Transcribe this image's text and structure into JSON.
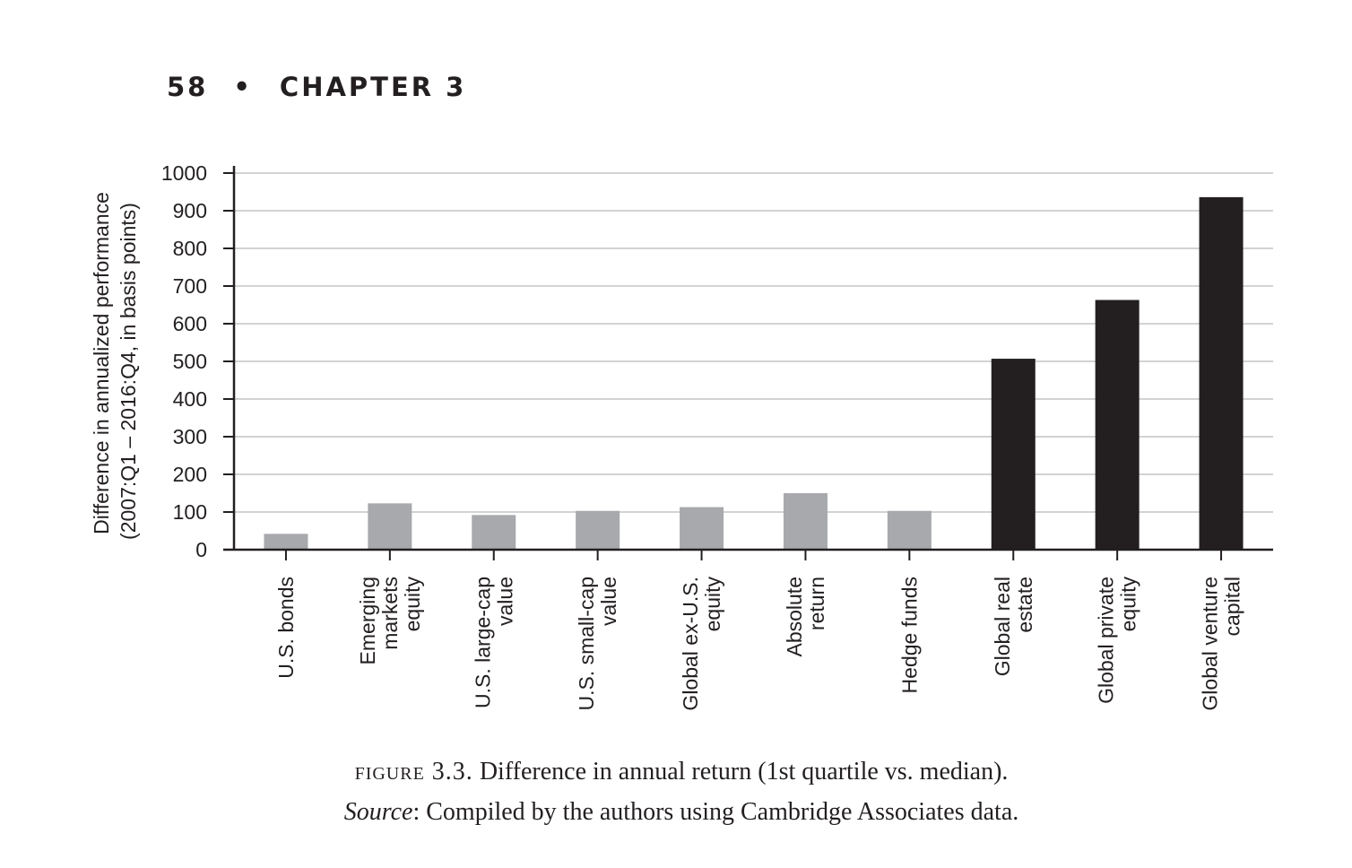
{
  "header": {
    "page_number": "58",
    "separator": "•",
    "chapter": "CHAPTER 3"
  },
  "chart_data": {
    "type": "bar",
    "title": "",
    "ylabel_line1": "Difference in annualized performance",
    "ylabel_line2": "(2007:Q1 – 2016:Q4, in basis points)",
    "xlabel": "",
    "ylim": [
      0,
      1000
    ],
    "yticks": [
      0,
      100,
      200,
      300,
      400,
      500,
      600,
      700,
      800,
      900,
      1000
    ],
    "grid": true,
    "categories": [
      [
        "U.S. bonds"
      ],
      [
        "Emerging",
        "markets",
        "equity"
      ],
      [
        "U.S. large-cap",
        "value"
      ],
      [
        "U.S. small-cap",
        "value"
      ],
      [
        "Global ex-U.S.",
        "equity"
      ],
      [
        "Absolute",
        "return"
      ],
      [
        "Hedge funds"
      ],
      [
        "Global real",
        "estate"
      ],
      [
        "Global private",
        "equity"
      ],
      [
        "Global venture",
        "capital"
      ]
    ],
    "values": [
      42,
      123,
      92,
      103,
      113,
      150,
      103,
      507,
      663,
      936
    ],
    "bar_colors": [
      "#a7a9ac",
      "#a7a9ac",
      "#a7a9ac",
      "#a7a9ac",
      "#a7a9ac",
      "#a7a9ac",
      "#a7a9ac",
      "#231f20",
      "#231f20",
      "#231f20"
    ]
  },
  "caption": {
    "figure_label": "figure 3.3.",
    "figure_text": " Difference in annual return (1st quartile vs. median).",
    "source_label": "Source",
    "source_text": ": Compiled by the authors using Cambridge Associates data."
  }
}
